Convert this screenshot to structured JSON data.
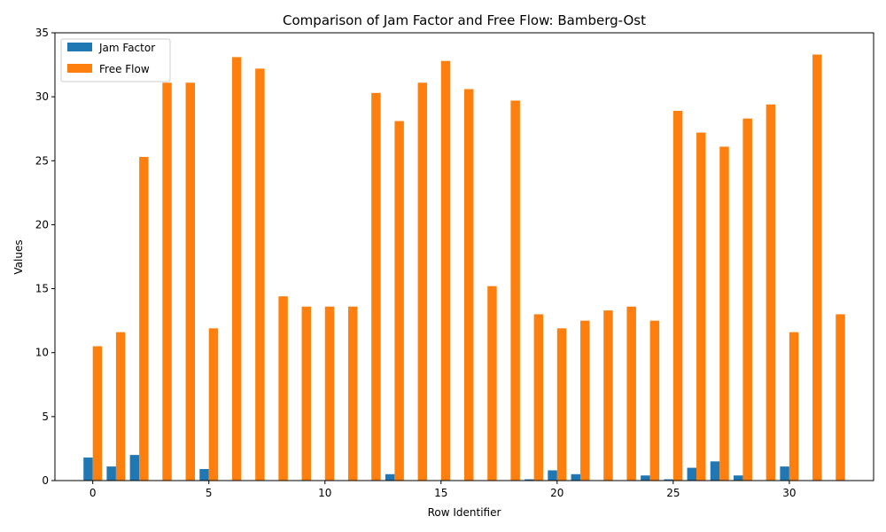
{
  "chart_data": {
    "type": "bar",
    "title": "Comparison of Jam Factor and Free Flow: Bamberg-Ost",
    "xlabel": "Row Identifier",
    "ylabel": "Values",
    "ylim": [
      0,
      35
    ],
    "xlim": [
      -1.63,
      33.63
    ],
    "xticks": [
      0,
      5,
      10,
      15,
      20,
      25,
      30
    ],
    "yticks": [
      0,
      5,
      10,
      15,
      20,
      25,
      30,
      35
    ],
    "legend_position": "top-left",
    "x": [
      0,
      1,
      2,
      3,
      4,
      5,
      6,
      7,
      8,
      9,
      10,
      11,
      12,
      13,
      14,
      15,
      16,
      17,
      18,
      19,
      20,
      21,
      22,
      23,
      24,
      25,
      26,
      27,
      28,
      29,
      30,
      31,
      32
    ],
    "series": [
      {
        "name": "Jam Factor",
        "color": "#1f77b4",
        "values": [
          1.8,
          1.1,
          2.0,
          0,
          0,
          0.9,
          0,
          0,
          0,
          0,
          0,
          0,
          0,
          0.5,
          0,
          0,
          0,
          0,
          0,
          0.1,
          0.8,
          0.5,
          0,
          0,
          0.4,
          0.1,
          1.0,
          1.5,
          0.4,
          0,
          1.1,
          0,
          0
        ]
      },
      {
        "name": "Free Flow",
        "color": "#ff7f0e",
        "values": [
          10.5,
          11.6,
          25.3,
          31.1,
          31.1,
          11.9,
          33.1,
          32.2,
          14.4,
          13.6,
          13.6,
          13.6,
          30.3,
          28.1,
          31.1,
          32.8,
          30.6,
          15.2,
          29.7,
          13.0,
          11.9,
          12.5,
          13.3,
          13.6,
          12.5,
          28.9,
          27.2,
          26.1,
          28.3,
          29.4,
          11.6,
          33.3,
          13.0
        ]
      }
    ]
  }
}
